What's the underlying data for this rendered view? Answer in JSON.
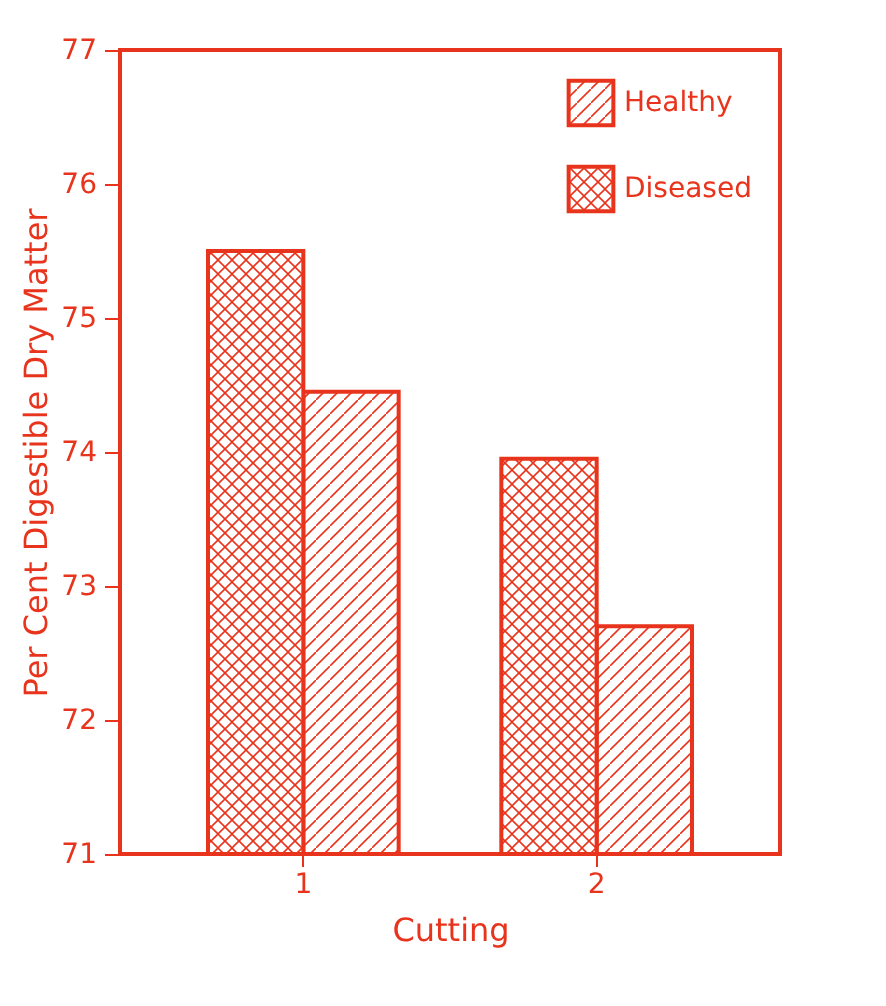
{
  "chart_data": {
    "type": "bar",
    "xlabel": "Cutting",
    "ylabel": "Per Cent Digestible Dry Matter",
    "categories": [
      "1",
      "2"
    ],
    "series": [
      {
        "name": "Healthy",
        "color": "#e8341c",
        "values": [
          74.45,
          72.7
        ]
      },
      {
        "name": "Diseased",
        "color": "#e8341c",
        "values": [
          75.5,
          73.95
        ]
      }
    ],
    "ylim": [
      71,
      77
    ],
    "yticks": [
      71,
      72,
      73,
      74,
      75,
      76,
      77
    ],
    "grid": false,
    "legend": "top right"
  }
}
